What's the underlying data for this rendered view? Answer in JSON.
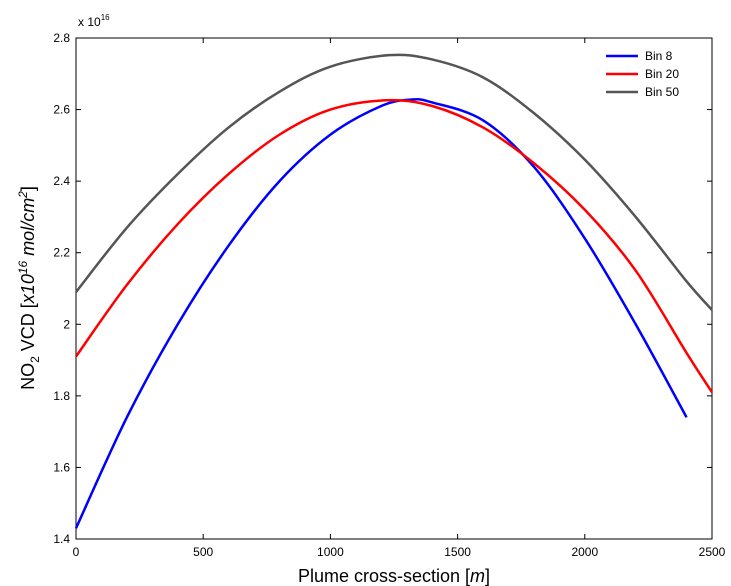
{
  "chart_data": {
    "type": "line",
    "xlabel_main": "Plume cross-section [",
    "xlabel_unit": "m",
    "xlabel_end": "]",
    "ylabel_prefix": "NO",
    "ylabel_sub": "2",
    "ylabel_mid": " VCD [",
    "ylabel_x10": "x10",
    "ylabel_exp": "16",
    "ylabel_unit": " mol/cm",
    "ylabel_unit_exp": "2",
    "ylabel_end": "]",
    "exponent_base": "x 10",
    "exponent_power": "16",
    "xlim": [
      0,
      2500
    ],
    "ylim": [
      1.4,
      2.8
    ],
    "xticks": [
      0,
      500,
      1000,
      1500,
      2000,
      2500
    ],
    "xtick_labels": [
      "0",
      "500",
      "1000",
      "1500",
      "2000",
      "2500"
    ],
    "yticks": [
      1.4,
      1.6,
      1.8,
      2.0,
      2.2,
      2.4,
      2.6,
      2.8
    ],
    "ytick_labels": [
      "1.4",
      "1.6",
      "1.8",
      "2",
      "2.2",
      "2.4",
      "2.6",
      "2.8"
    ],
    "legend_position": "top-right",
    "series": [
      {
        "name": "Bin 8",
        "color": "#0000ff",
        "x": [
          0,
          200,
          400,
          600,
          800,
          1000,
          1200,
          1320,
          1400,
          1600,
          1800,
          2000,
          2200,
          2400
        ],
        "y": [
          1.43,
          1.74,
          2.0,
          2.22,
          2.4,
          2.53,
          2.61,
          2.628,
          2.62,
          2.57,
          2.44,
          2.24,
          2.0,
          1.74
        ]
      },
      {
        "name": "Bin 20",
        "color": "#ff0000",
        "x": [
          0,
          200,
          400,
          600,
          800,
          1000,
          1220,
          1400,
          1600,
          1800,
          2000,
          2200,
          2400,
          2500
        ],
        "y": [
          1.91,
          2.11,
          2.28,
          2.42,
          2.53,
          2.6,
          2.626,
          2.61,
          2.55,
          2.45,
          2.32,
          2.15,
          1.92,
          1.81
        ]
      },
      {
        "name": "Bin 50",
        "color": "#555555",
        "x": [
          0,
          200,
          400,
          600,
          800,
          1000,
          1230,
          1400,
          1600,
          1800,
          2000,
          2200,
          2400,
          2500
        ],
        "y": [
          2.09,
          2.27,
          2.42,
          2.55,
          2.65,
          2.72,
          2.752,
          2.74,
          2.69,
          2.59,
          2.46,
          2.3,
          2.12,
          2.04
        ]
      }
    ]
  }
}
